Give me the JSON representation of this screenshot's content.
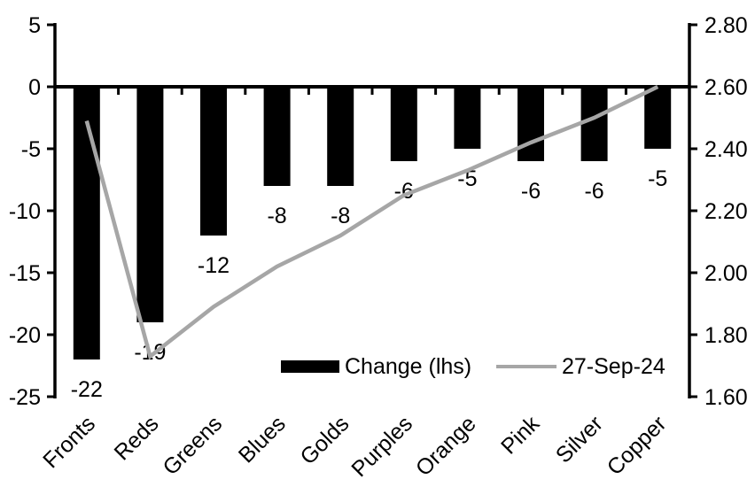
{
  "chart_data": {
    "type": "combo-bar-line",
    "title": "",
    "categories": [
      "Fronts",
      "Reds",
      "Greens",
      "Blues",
      "Golds",
      "Purples",
      "Orange",
      "Pink",
      "Silver",
      "Copper"
    ],
    "series": [
      {
        "name": "Change (lhs)",
        "type": "bar",
        "axis": "left",
        "color": "#000000",
        "values": [
          -22,
          -19,
          -12,
          -8,
          -8,
          -6,
          -5,
          -6,
          -6,
          -5
        ]
      },
      {
        "name": "27-Sep-24",
        "type": "line",
        "axis": "right",
        "color": "#a6a6a6",
        "values": [
          2.49,
          1.73,
          1.89,
          2.02,
          2.12,
          2.25,
          2.33,
          2.42,
          2.5,
          2.6
        ]
      }
    ],
    "bar_labels": [
      "-22",
      "-19",
      "-12",
      "-8",
      "-8",
      "-6",
      "-5",
      "-6",
      "-6",
      "-5"
    ],
    "left_axis": {
      "min": -25,
      "max": 5,
      "step": 5,
      "ticks": [
        "5",
        "0",
        "-5",
        "-10",
        "-15",
        "-20",
        "-25"
      ]
    },
    "right_axis": {
      "min": 1.6,
      "max": 2.8,
      "step": 0.2,
      "ticks": [
        "2.80",
        "2.60",
        "2.40",
        "2.20",
        "2.00",
        "1.80",
        "1.60"
      ]
    },
    "grid": false,
    "legend_position": "bottom-inside",
    "background": "#ffffff",
    "axis_color": "#000000"
  }
}
